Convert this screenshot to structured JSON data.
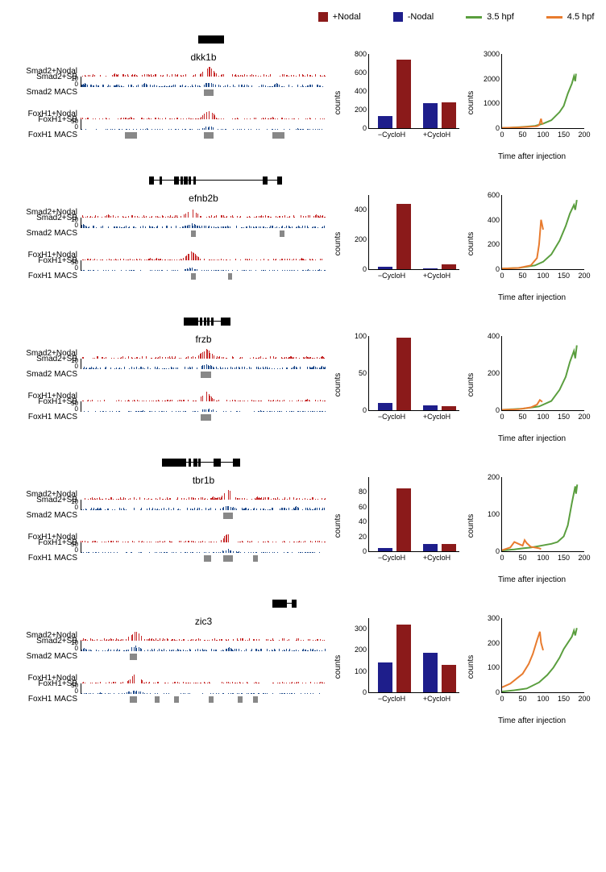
{
  "legend": {
    "bar_plus": {
      "label": "+Nodal",
      "color": "#8b1a1a"
    },
    "bar_minus": {
      "label": "-Nodal",
      "color": "#1e1e8b"
    },
    "line_35": {
      "label": "3.5 hpf",
      "color": "#5a9e3e"
    },
    "line_45": {
      "label": "4.5 hpf",
      "color": "#e87b2e"
    }
  },
  "track_colors": {
    "plus_nodal": "#c62828",
    "sb": "#1e4a8b",
    "macs": "#888888"
  },
  "track_labels": {
    "smad2_nodal": "Smad2+Nodal",
    "smad2_sb": "Smad2+SB",
    "smad2_macs": "Smad2 MACS",
    "foxh1_nodal": "FoxH1+Nodal",
    "foxh1_sb": "FoxH1+SB",
    "foxh1_macs": "FoxH1 MACS",
    "scale_smad": "10",
    "scale_foxh": "50",
    "scale_zero": "0"
  },
  "axis_labels": {
    "counts": "counts",
    "time": "Time after injection",
    "minus_cycloh": "−CycloH",
    "plus_cycloh": "+CycloH"
  },
  "genes": [
    {
      "name": "dkk1b",
      "exons": [
        {
          "x": 48,
          "w": 2.5
        },
        {
          "x": 50.5,
          "w": 1.8
        },
        {
          "x": 52.5,
          "w": 2.5
        },
        {
          "x": 55.2,
          "w": 3
        }
      ],
      "intron": {
        "x": 48,
        "w": 10
      },
      "peak_center": 52,
      "smad_macs": [
        {
          "x": 50,
          "w": 4
        }
      ],
      "foxh_macs": [
        {
          "x": 18,
          "w": 5
        },
        {
          "x": 50,
          "w": 4
        },
        {
          "x": 78,
          "w": 5
        }
      ],
      "bar_chart": {
        "ymax": 800,
        "yticks": [
          0,
          200,
          400,
          600,
          800
        ],
        "bars": [
          {
            "cat": 0,
            "series": "minus",
            "value": 130
          },
          {
            "cat": 0,
            "series": "plus",
            "value": 740
          },
          {
            "cat": 1,
            "series": "minus",
            "value": 270
          },
          {
            "cat": 1,
            "series": "plus",
            "value": 280
          }
        ]
      },
      "line_chart": {
        "ymax": 3000,
        "yticks": [
          0,
          1000,
          2000,
          3000
        ],
        "xmax": 200,
        "xticks": [
          0,
          50,
          100,
          150,
          200
        ],
        "series_35": [
          [
            0,
            10
          ],
          [
            20,
            20
          ],
          [
            40,
            40
          ],
          [
            60,
            60
          ],
          [
            80,
            90
          ],
          [
            100,
            180
          ],
          [
            120,
            320
          ],
          [
            140,
            650
          ],
          [
            150,
            900
          ],
          [
            160,
            1400
          ],
          [
            170,
            1800
          ],
          [
            175,
            2100
          ],
          [
            178,
            1900
          ],
          [
            180,
            2200
          ]
        ],
        "series_45": [
          [
            0,
            10
          ],
          [
            20,
            20
          ],
          [
            40,
            30
          ],
          [
            60,
            50
          ],
          [
            80,
            70
          ],
          [
            85,
            80
          ],
          [
            90,
            120
          ],
          [
            95,
            380
          ],
          [
            97,
            200
          ],
          [
            100,
            150
          ]
        ]
      }
    },
    {
      "name": "efnb2b",
      "exons": [
        {
          "x": 28,
          "w": 2
        },
        {
          "x": 32,
          "w": 1
        },
        {
          "x": 38,
          "w": 2
        },
        {
          "x": 40.5,
          "w": 1
        },
        {
          "x": 42,
          "w": 1.5
        },
        {
          "x": 44,
          "w": 1
        },
        {
          "x": 46,
          "w": 1
        },
        {
          "x": 74,
          "w": 2
        },
        {
          "x": 80,
          "w": 2
        }
      ],
      "intron": {
        "x": 28,
        "w": 54
      },
      "peak_center": 45,
      "smad_macs": [
        {
          "x": 45,
          "w": 2
        },
        {
          "x": 81,
          "w": 2
        }
      ],
      "foxh_macs": [
        {
          "x": 45,
          "w": 2
        },
        {
          "x": 60,
          "w": 1.5
        }
      ],
      "bar_chart": {
        "ymax": 500,
        "yticks": [
          0,
          200,
          400
        ],
        "bars": [
          {
            "cat": 0,
            "series": "minus",
            "value": 15
          },
          {
            "cat": 0,
            "series": "plus",
            "value": 440
          },
          {
            "cat": 1,
            "series": "minus",
            "value": 5
          },
          {
            "cat": 1,
            "series": "plus",
            "value": 35
          }
        ]
      },
      "line_chart": {
        "ymax": 600,
        "yticks": [
          0,
          200,
          400,
          600
        ],
        "xmax": 200,
        "xticks": [
          0,
          50,
          100,
          150,
          200
        ],
        "series_35": [
          [
            0,
            5
          ],
          [
            40,
            10
          ],
          [
            80,
            30
          ],
          [
            100,
            60
          ],
          [
            120,
            120
          ],
          [
            140,
            230
          ],
          [
            155,
            350
          ],
          [
            165,
            450
          ],
          [
            175,
            520
          ],
          [
            178,
            480
          ],
          [
            182,
            560
          ]
        ],
        "series_45": [
          [
            0,
            5
          ],
          [
            40,
            10
          ],
          [
            70,
            30
          ],
          [
            85,
            90
          ],
          [
            90,
            200
          ],
          [
            95,
            400
          ],
          [
            100,
            320
          ]
        ]
      }
    },
    {
      "name": "frzb",
      "exons": [
        {
          "x": 42,
          "w": 6
        },
        {
          "x": 48.5,
          "w": 1
        },
        {
          "x": 50,
          "w": 1
        },
        {
          "x": 51.5,
          "w": 1
        },
        {
          "x": 53,
          "w": 1
        },
        {
          "x": 57,
          "w": 4
        }
      ],
      "intron": {
        "x": 42,
        "w": 19
      },
      "peak_center": 51,
      "smad_macs": [
        {
          "x": 49,
          "w": 4
        }
      ],
      "foxh_macs": [
        {
          "x": 49,
          "w": 4
        }
      ],
      "bar_chart": {
        "ymax": 100,
        "yticks": [
          0,
          50,
          100
        ],
        "bars": [
          {
            "cat": 0,
            "series": "minus",
            "value": 10
          },
          {
            "cat": 0,
            "series": "plus",
            "value": 98
          },
          {
            "cat": 1,
            "series": "minus",
            "value": 7
          },
          {
            "cat": 1,
            "series": "plus",
            "value": 5
          }
        ]
      },
      "line_chart": {
        "ymax": 400,
        "yticks": [
          0,
          200,
          400
        ],
        "xmax": 200,
        "xticks": [
          0,
          50,
          100,
          150,
          200
        ],
        "series_35": [
          [
            0,
            2
          ],
          [
            50,
            8
          ],
          [
            90,
            20
          ],
          [
            120,
            50
          ],
          [
            140,
            110
          ],
          [
            155,
            180
          ],
          [
            165,
            260
          ],
          [
            175,
            320
          ],
          [
            178,
            280
          ],
          [
            182,
            350
          ]
        ],
        "series_45": [
          [
            0,
            2
          ],
          [
            40,
            5
          ],
          [
            70,
            15
          ],
          [
            85,
            30
          ],
          [
            92,
            55
          ],
          [
            98,
            45
          ]
        ]
      }
    },
    {
      "name": "tbr1b",
      "exons": [
        {
          "x": 33,
          "w": 10
        },
        {
          "x": 44,
          "w": 1
        },
        {
          "x": 46,
          "w": 1.5
        },
        {
          "x": 48,
          "w": 1
        },
        {
          "x": 54,
          "w": 3
        },
        {
          "x": 62,
          "w": 3
        }
      ],
      "intron": {
        "x": 33,
        "w": 32
      },
      "peak_center": 60,
      "smad_macs": [
        {
          "x": 58,
          "w": 4
        }
      ],
      "foxh_macs": [
        {
          "x": 50,
          "w": 3
        },
        {
          "x": 58,
          "w": 4
        },
        {
          "x": 70,
          "w": 2
        }
      ],
      "bar_chart": {
        "ymax": 100,
        "yticks": [
          0,
          20,
          40,
          60,
          80
        ],
        "bars": [
          {
            "cat": 0,
            "series": "minus",
            "value": 4
          },
          {
            "cat": 0,
            "series": "plus",
            "value": 85
          },
          {
            "cat": 1,
            "series": "minus",
            "value": 10
          },
          {
            "cat": 1,
            "series": "plus",
            "value": 10
          }
        ]
      },
      "line_chart": {
        "ymax": 200,
        "yticks": [
          0,
          100,
          200
        ],
        "xmax": 200,
        "xticks": [
          0,
          50,
          100,
          150,
          200
        ],
        "series_35": [
          [
            0,
            2
          ],
          [
            30,
            5
          ],
          [
            50,
            8
          ],
          [
            70,
            10
          ],
          [
            90,
            14
          ],
          [
            110,
            18
          ],
          [
            120,
            20
          ],
          [
            135,
            25
          ],
          [
            150,
            40
          ],
          [
            160,
            70
          ],
          [
            170,
            130
          ],
          [
            178,
            175
          ],
          [
            180,
            155
          ],
          [
            183,
            180
          ]
        ],
        "series_45": [
          [
            0,
            3
          ],
          [
            20,
            10
          ],
          [
            30,
            25
          ],
          [
            40,
            20
          ],
          [
            50,
            15
          ],
          [
            55,
            30
          ],
          [
            60,
            22
          ],
          [
            70,
            12
          ],
          [
            80,
            10
          ],
          [
            90,
            8
          ],
          [
            95,
            6
          ]
        ]
      }
    },
    {
      "name": "zic3",
      "exons": [
        {
          "x": 78,
          "w": 6
        },
        {
          "x": 86,
          "w": 2
        }
      ],
      "intron": {
        "x": 78,
        "w": 10
      },
      "peak_center": 22,
      "smad_macs": [
        {
          "x": 20,
          "w": 3
        }
      ],
      "foxh_macs": [
        {
          "x": 20,
          "w": 3
        },
        {
          "x": 30,
          "w": 2
        },
        {
          "x": 38,
          "w": 2
        },
        {
          "x": 52,
          "w": 2
        },
        {
          "x": 64,
          "w": 2
        },
        {
          "x": 70,
          "w": 2
        }
      ],
      "bar_chart": {
        "ymax": 350,
        "yticks": [
          0,
          100,
          200,
          300
        ],
        "bars": [
          {
            "cat": 0,
            "series": "minus",
            "value": 140
          },
          {
            "cat": 0,
            "series": "plus",
            "value": 320
          },
          {
            "cat": 1,
            "series": "minus",
            "value": 185
          },
          {
            "cat": 1,
            "series": "plus",
            "value": 130
          }
        ]
      },
      "line_chart": {
        "ymax": 300,
        "yticks": [
          0,
          100,
          200,
          300
        ],
        "xmax": 200,
        "xticks": [
          0,
          50,
          100,
          150,
          200
        ],
        "series_35": [
          [
            0,
            3
          ],
          [
            30,
            8
          ],
          [
            60,
            15
          ],
          [
            90,
            40
          ],
          [
            110,
            70
          ],
          [
            125,
            100
          ],
          [
            140,
            140
          ],
          [
            150,
            175
          ],
          [
            160,
            200
          ],
          [
            170,
            225
          ],
          [
            175,
            250
          ],
          [
            178,
            230
          ],
          [
            182,
            260
          ]
        ],
        "series_45": [
          [
            0,
            20
          ],
          [
            20,
            35
          ],
          [
            35,
            55
          ],
          [
            50,
            75
          ],
          [
            65,
            115
          ],
          [
            75,
            155
          ],
          [
            85,
            210
          ],
          [
            92,
            245
          ],
          [
            95,
            200
          ],
          [
            100,
            170
          ]
        ]
      }
    }
  ]
}
